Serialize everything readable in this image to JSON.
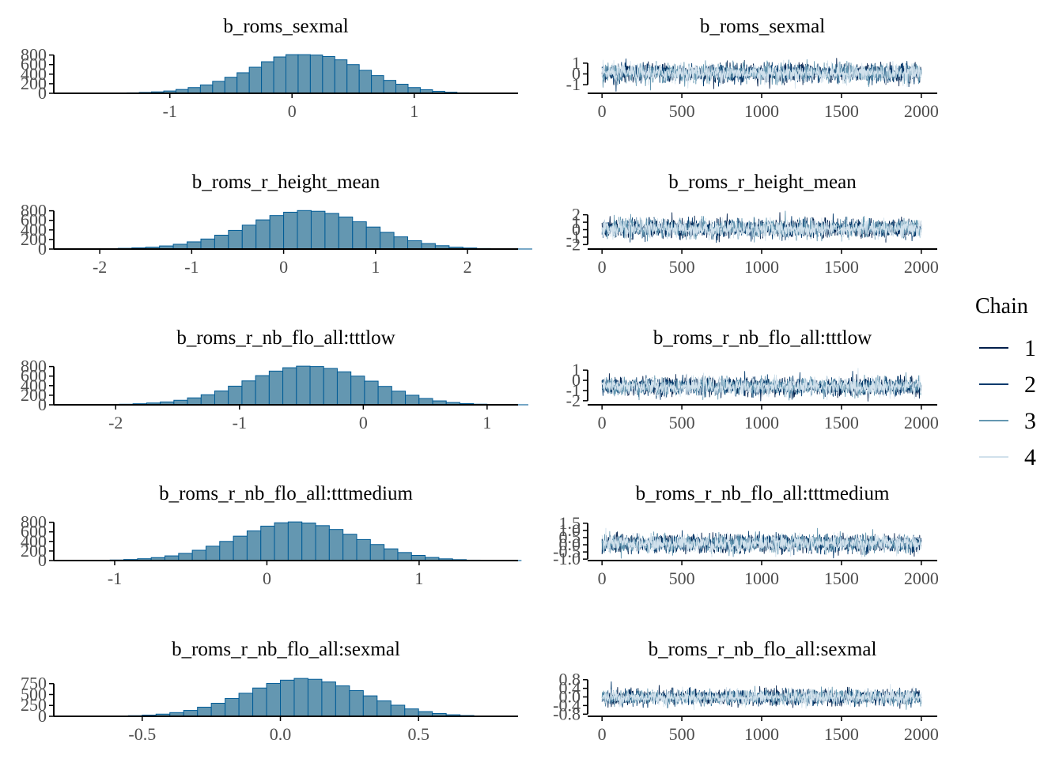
{
  "colors": {
    "hist_fill": "#6497b1",
    "hist_stroke": "#005b96",
    "axis": "#000000",
    "tick_text": "#4d4d4d",
    "chains": [
      "#011f4b",
      "#03396c",
      "#6497b1",
      "#d1e1ec"
    ]
  },
  "legend": {
    "title": "Chain",
    "items": [
      "1",
      "2",
      "3",
      "4"
    ],
    "placement": "right"
  },
  "chart_data": [
    {
      "type": "bar",
      "kind": "histogram",
      "title": "b_roms_sexmal",
      "xlim": [
        -1.95,
        1.85
      ],
      "ylim": [
        0,
        810
      ],
      "x_ticks": [
        -1,
        0,
        1
      ],
      "x_tick_labels": [
        "-1",
        "0",
        "1"
      ],
      "y_ticks": [
        0,
        200,
        400,
        600,
        800
      ],
      "y_tick_labels": [
        "0",
        "200",
        "400",
        "600",
        "800"
      ],
      "bins_start": -1.75,
      "bin_width": 0.1,
      "counts": [
        1,
        2,
        4,
        6,
        10,
        18,
        30,
        48,
        80,
        120,
        175,
        250,
        335,
        430,
        545,
        660,
        760,
        808,
        808,
        800,
        770,
        700,
        600,
        480,
        370,
        270,
        190,
        120,
        75,
        42,
        22,
        10,
        5,
        2,
        1
      ]
    },
    {
      "type": "line",
      "kind": "trace",
      "title": "b_roms_sexmal",
      "xlim": [
        -90,
        2100
      ],
      "ylim": [
        -1.8,
        1.8
      ],
      "x_ticks": [
        0,
        500,
        1000,
        1500,
        2000
      ],
      "x_tick_labels": [
        "0",
        "500",
        "1000",
        "1500",
        "2000"
      ],
      "y_ticks": [
        -1,
        0,
        1
      ],
      "y_tick_labels": [
        "-1",
        "0",
        "1"
      ],
      "iterations": 2000,
      "center": 0.08,
      "sd": 0.42
    },
    {
      "type": "bar",
      "kind": "histogram",
      "title": "b_roms_r_height_mean",
      "xlim": [
        -2.5,
        2.55
      ],
      "ylim": [
        0,
        810
      ],
      "x_ticks": [
        -2,
        -1,
        0,
        1,
        2
      ],
      "x_tick_labels": [
        "-2",
        "-1",
        "0",
        "1",
        "2"
      ],
      "y_ticks": [
        0,
        200,
        400,
        600,
        800
      ],
      "y_tick_labels": [
        "0",
        "200",
        "400",
        "600",
        "800"
      ],
      "bins_start": -2.4,
      "bin_width": 0.15,
      "counts": [
        1,
        2,
        4,
        8,
        15,
        25,
        40,
        65,
        100,
        150,
        210,
        290,
        390,
        500,
        610,
        700,
        770,
        805,
        790,
        745,
        670,
        570,
        460,
        350,
        255,
        175,
        115,
        70,
        40,
        22,
        11,
        5,
        2,
        1
      ]
    },
    {
      "type": "line",
      "kind": "trace",
      "title": "b_roms_r_height_mean",
      "xlim": [
        -90,
        2100
      ],
      "ylim": [
        -2.6,
        2.6
      ],
      "x_ticks": [
        0,
        500,
        1000,
        1500,
        2000
      ],
      "x_tick_labels": [
        "0",
        "500",
        "1000",
        "1500",
        "2000"
      ],
      "y_ticks": [
        -2,
        -1,
        0,
        1,
        2
      ],
      "y_tick_labels": [
        "-2",
        "-1",
        "0",
        "1",
        "2"
      ],
      "iterations": 2000,
      "center": 0.15,
      "sd": 0.6
    },
    {
      "type": "bar",
      "kind": "histogram",
      "title": "b_roms_r_nb_flo_all:tttlow",
      "xlim": [
        -2.5,
        1.25
      ],
      "ylim": [
        0,
        810
      ],
      "x_ticks": [
        -2,
        -1,
        0,
        1
      ],
      "x_tick_labels": [
        "-2",
        "-1",
        "0",
        "1"
      ],
      "y_ticks": [
        0,
        200,
        400,
        600,
        800
      ],
      "y_tick_labels": [
        "0",
        "200",
        "400",
        "600",
        "800"
      ],
      "bins_start": -2.3,
      "bin_width": 0.11,
      "counts": [
        1,
        3,
        6,
        12,
        22,
        38,
        60,
        95,
        145,
        210,
        290,
        390,
        500,
        610,
        705,
        775,
        808,
        800,
        760,
        690,
        600,
        495,
        385,
        285,
        200,
        132,
        82,
        48,
        26,
        13,
        6,
        3,
        1
      ]
    },
    {
      "type": "line",
      "kind": "trace",
      "title": "b_roms_r_nb_flo_all:tttlow",
      "xlim": [
        -90,
        2100
      ],
      "ylim": [
        -2.4,
        1.4
      ],
      "x_ticks": [
        0,
        500,
        1000,
        1500,
        2000
      ],
      "x_tick_labels": [
        "0",
        "500",
        "1000",
        "1500",
        "2000"
      ],
      "y_ticks": [
        -2,
        -1,
        0,
        1
      ],
      "y_tick_labels": [
        "-2",
        "-1",
        "0",
        "1"
      ],
      "iterations": 2000,
      "center": -0.62,
      "sd": 0.42
    },
    {
      "type": "bar",
      "kind": "histogram",
      "title": "b_roms_r_nb_flo_all:tttmedium",
      "xlim": [
        -1.4,
        1.65
      ],
      "ylim": [
        0,
        810
      ],
      "x_ticks": [
        -1,
        0,
        1
      ],
      "x_tick_labels": [
        "-1",
        "0",
        "1"
      ],
      "y_ticks": [
        0,
        200,
        400,
        600,
        800
      ],
      "y_tick_labels": [
        "0",
        "200",
        "400",
        "600",
        "800"
      ],
      "bins_start": -1.3,
      "bin_width": 0.09,
      "counts": [
        1,
        3,
        6,
        12,
        22,
        38,
        62,
        98,
        150,
        215,
        300,
        400,
        510,
        620,
        720,
        790,
        808,
        785,
        730,
        650,
        550,
        440,
        335,
        245,
        168,
        108,
        65,
        36,
        19,
        9,
        4,
        2,
        1
      ]
    },
    {
      "type": "line",
      "kind": "trace",
      "title": "b_roms_r_nb_flo_all:tttmedium",
      "xlim": [
        -90,
        2100
      ],
      "ylim": [
        -1.1,
        1.6
      ],
      "x_ticks": [
        0,
        500,
        1000,
        1500,
        2000
      ],
      "x_tick_labels": [
        "0",
        "500",
        "1000",
        "1500",
        "2000"
      ],
      "y_ticks": [
        -1.0,
        -0.5,
        0.0,
        0.5,
        1.0,
        1.5
      ],
      "y_tick_labels": [
        "-1.0",
        "-0.5",
        "0.0",
        "0.5",
        "1.0",
        "1.5"
      ],
      "iterations": 2000,
      "center": 0.08,
      "sd": 0.3
    },
    {
      "type": "bar",
      "kind": "histogram",
      "title": "b_roms_r_nb_flo_all:sexmal",
      "xlim": [
        -0.82,
        0.86
      ],
      "ylim": [
        0,
        890
      ],
      "x_ticks": [
        -0.5,
        0.0,
        0.5
      ],
      "x_tick_labels": [
        "-0.5",
        "0.0",
        "0.5"
      ],
      "y_ticks": [
        0,
        250,
        500,
        750
      ],
      "y_tick_labels": [
        "0",
        "250",
        "500",
        "750"
      ],
      "bins_start": -0.7,
      "bin_width": 0.05,
      "counts": [
        1,
        3,
        7,
        14,
        28,
        50,
        85,
        135,
        210,
        300,
        410,
        530,
        650,
        755,
        830,
        870,
        850,
        790,
        700,
        590,
        470,
        355,
        255,
        170,
        108,
        64,
        35,
        18,
        8,
        3,
        1
      ]
    },
    {
      "type": "line",
      "kind": "trace",
      "title": "b_roms_r_nb_flo_all:sexmal",
      "xlim": [
        -90,
        2100
      ],
      "ylim": [
        -0.9,
        0.9
      ],
      "x_ticks": [
        0,
        500,
        1000,
        1500,
        2000
      ],
      "x_tick_labels": [
        "0",
        "500",
        "1000",
        "1500",
        "2000"
      ],
      "y_ticks": [
        -0.8,
        -0.4,
        0.0,
        0.4,
        0.8
      ],
      "y_tick_labels": [
        "-0.8",
        "-0.4",
        "0.0",
        "0.4",
        "0.8"
      ],
      "iterations": 2000,
      "center": -0.02,
      "sd": 0.17
    }
  ]
}
